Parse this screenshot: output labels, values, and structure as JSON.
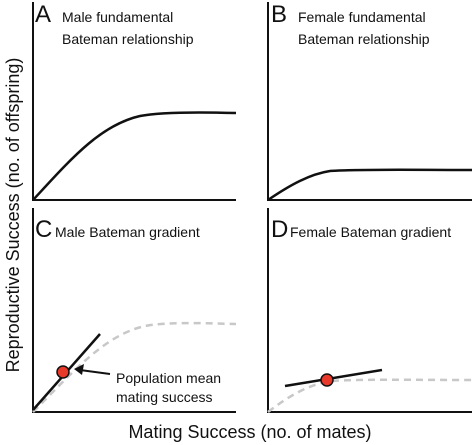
{
  "y_label": "Reproductive Success (no. of offspring)",
  "x_label": "Mating Success (no. of mates)",
  "panels": [
    {
      "letter": "A",
      "title": [
        "Male fundamental",
        "Bateman relationship"
      ]
    },
    {
      "letter": "B",
      "title": [
        "Female fundamental",
        "Bateman relationship"
      ]
    },
    {
      "letter": "C",
      "title": [
        "Male Bateman gradient"
      ]
    },
    {
      "letter": "D",
      "title": [
        "Female Bateman gradient"
      ]
    }
  ],
  "annotation": [
    "Population mean",
    "mating success"
  ]
}
